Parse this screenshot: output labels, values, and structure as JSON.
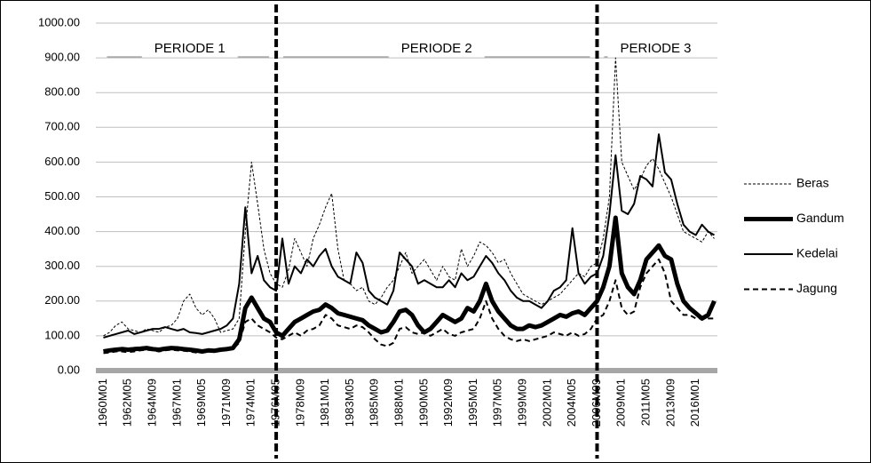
{
  "chart_data": {
    "type": "line",
    "categories": [
      "1960M01",
      null,
      null,
      null,
      "1962M05",
      null,
      null,
      null,
      "1964M09",
      null,
      null,
      null,
      "1967M01",
      null,
      null,
      null,
      "1969M05",
      null,
      null,
      null,
      "1971M09",
      null,
      null,
      null,
      "1974M01",
      null,
      null,
      null,
      "1976M05",
      null,
      null,
      null,
      "1978M09",
      null,
      null,
      null,
      "1981M01",
      null,
      null,
      null,
      "1983M05",
      null,
      null,
      null,
      "1985M09",
      null,
      null,
      null,
      "1988M01",
      null,
      null,
      null,
      "1990M05",
      null,
      null,
      null,
      "1992M09",
      null,
      null,
      null,
      "1995M01",
      null,
      null,
      null,
      "1997M05",
      null,
      null,
      null,
      "1999M09",
      null,
      null,
      null,
      "2002M01",
      null,
      null,
      null,
      "2004M05",
      null,
      null,
      null,
      "2006M09",
      null,
      null,
      null,
      "2009M01",
      null,
      null,
      null,
      "2011M05",
      null,
      null,
      null,
      "2013M09",
      null,
      null,
      null,
      "2016M01",
      null,
      null,
      null
    ],
    "series": [
      {
        "name": "Beras",
        "color": "#000000",
        "width": 1,
        "dash": "3 2",
        "values": [
          100,
          110,
          130,
          140,
          120,
          115,
          110,
          120,
          115,
          110,
          125,
          130,
          150,
          200,
          220,
          180,
          160,
          175,
          150,
          110,
          115,
          120,
          150,
          400,
          600,
          480,
          350,
          280,
          250,
          240,
          290,
          380,
          340,
          300,
          380,
          420,
          470,
          510,
          350,
          260,
          250,
          230,
          240,
          200,
          190,
          210,
          240,
          260,
          300,
          340,
          280,
          300,
          320,
          290,
          260,
          300,
          270,
          260,
          350,
          300,
          330,
          370,
          360,
          340,
          310,
          320,
          280,
          250,
          220,
          210,
          200,
          190,
          200,
          210,
          220,
          240,
          260,
          280,
          270,
          300,
          310,
          380,
          500,
          900,
          600,
          560,
          520,
          550,
          590,
          610,
          580,
          540,
          500,
          450,
          400,
          390,
          380,
          370,
          400,
          380
        ]
      },
      {
        "name": "Gandum",
        "color": "#000000",
        "width": 5,
        "dash": "none",
        "values": [
          55,
          58,
          60,
          62,
          60,
          62,
          63,
          65,
          62,
          60,
          63,
          65,
          64,
          62,
          60,
          58,
          55,
          58,
          57,
          60,
          62,
          65,
          90,
          180,
          210,
          180,
          150,
          140,
          110,
          100,
          120,
          140,
          150,
          160,
          170,
          175,
          190,
          180,
          165,
          160,
          155,
          150,
          145,
          130,
          120,
          110,
          115,
          140,
          170,
          175,
          160,
          130,
          110,
          120,
          140,
          160,
          150,
          140,
          150,
          180,
          170,
          200,
          250,
          200,
          170,
          150,
          130,
          120,
          120,
          130,
          125,
          130,
          140,
          150,
          160,
          155,
          165,
          170,
          160,
          180,
          200,
          240,
          300,
          440,
          280,
          240,
          220,
          260,
          320,
          340,
          360,
          330,
          320,
          250,
          200,
          180,
          165,
          150,
          160,
          200
        ]
      },
      {
        "name": "Kedelai",
        "color": "#000000",
        "width": 2,
        "dash": "none",
        "values": [
          95,
          100,
          105,
          110,
          115,
          105,
          110,
          115,
          120,
          120,
          125,
          120,
          115,
          120,
          110,
          108,
          105,
          110,
          115,
          120,
          130,
          150,
          250,
          470,
          280,
          330,
          260,
          240,
          230,
          380,
          250,
          300,
          280,
          320,
          300,
          330,
          350,
          300,
          270,
          260,
          250,
          340,
          310,
          230,
          210,
          200,
          190,
          230,
          340,
          320,
          300,
          250,
          260,
          250,
          240,
          240,
          260,
          240,
          280,
          260,
          270,
          300,
          330,
          310,
          280,
          260,
          230,
          210,
          200,
          200,
          190,
          180,
          200,
          230,
          240,
          260,
          410,
          280,
          250,
          270,
          280,
          330,
          450,
          620,
          460,
          450,
          480,
          560,
          550,
          530,
          680,
          570,
          550,
          480,
          420,
          400,
          390,
          420,
          400,
          390
        ]
      },
      {
        "name": "Jagung",
        "color": "#000000",
        "width": 2,
        "dash": "6 4",
        "values": [
          50,
          52,
          55,
          55,
          53,
          55,
          58,
          60,
          58,
          55,
          58,
          60,
          58,
          57,
          55,
          52,
          52,
          54,
          55,
          58,
          60,
          62,
          80,
          140,
          150,
          130,
          120,
          110,
          95,
          90,
          100,
          110,
          100,
          115,
          120,
          130,
          160,
          150,
          130,
          125,
          120,
          130,
          125,
          110,
          90,
          75,
          70,
          80,
          120,
          125,
          110,
          105,
          110,
          100,
          110,
          120,
          105,
          100,
          110,
          115,
          120,
          150,
          200,
          150,
          120,
          100,
          90,
          85,
          90,
          85,
          90,
          95,
          100,
          110,
          105,
          100,
          110,
          100,
          105,
          120,
          150,
          160,
          200,
          260,
          180,
          160,
          170,
          240,
          280,
          300,
          320,
          280,
          200,
          180,
          160,
          160,
          150,
          150,
          150,
          150
        ]
      }
    ],
    "ylim": [
      0,
      1000
    ],
    "yticks": [
      {
        "value": 0,
        "label": "0.00"
      },
      {
        "value": 100,
        "label": "100.00"
      },
      {
        "value": 200,
        "label": "200.00"
      },
      {
        "value": 300,
        "label": "300.00"
      },
      {
        "value": 400,
        "label": "400.00"
      },
      {
        "value": 500,
        "label": "500.00"
      },
      {
        "value": 600,
        "label": "600.00"
      },
      {
        "value": 700,
        "label": "700.00"
      },
      {
        "value": 800,
        "label": "800.00"
      },
      {
        "value": 900,
        "label": "900.00"
      },
      {
        "value": 1000,
        "label": "1000.00"
      }
    ],
    "grid": true,
    "legend": "right",
    "periods": [
      {
        "label": "PERIODE 1",
        "start": 0,
        "end": 28
      },
      {
        "label": "PERIODE 2",
        "start": 28,
        "end": 80
      },
      {
        "label": "PERIODE 3",
        "start": 80,
        "end": 99
      }
    ]
  }
}
